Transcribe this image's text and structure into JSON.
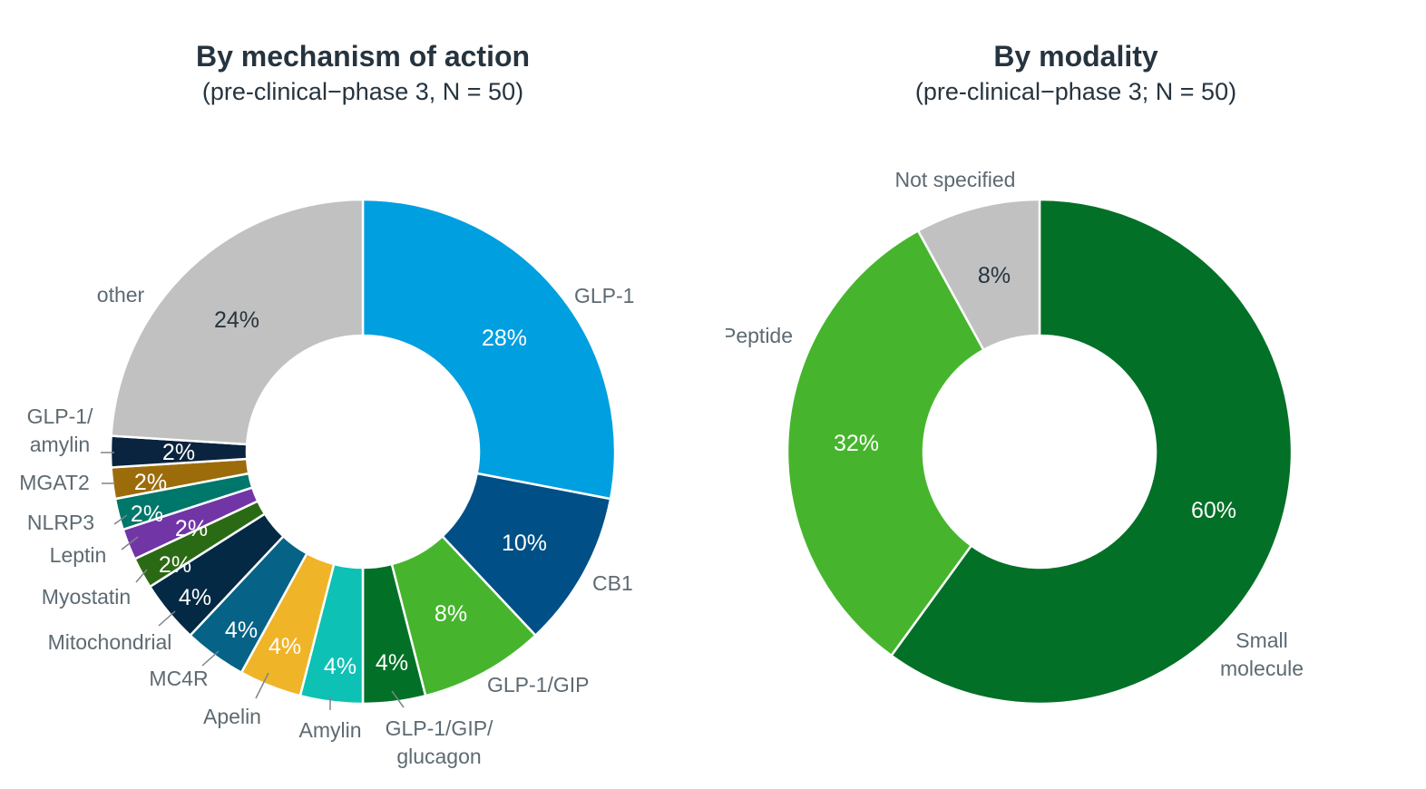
{
  "chart_data": [
    {
      "type": "pie",
      "title": "By mechanism of action",
      "subtitle": "(pre-clinical−phase 3, N = 50)",
      "slices": [
        {
          "name": "GLP-1",
          "value": 28,
          "label": "28%",
          "color": "#009fe0",
          "text_color": "#ffffff"
        },
        {
          "name": "CB1",
          "value": 10,
          "label": "10%",
          "color": "#004f86",
          "text_color": "#ffffff"
        },
        {
          "name": "GLP-1/GIP",
          "value": 8,
          "label": "8%",
          "color": "#46b52d",
          "text_color": "#ffffff"
        },
        {
          "name": "GLP-1/GIP/\nglucagon",
          "value": 4,
          "label": "4%",
          "color": "#037027",
          "text_color": "#ffffff"
        },
        {
          "name": "Amylin",
          "value": 4,
          "label": "4%",
          "color": "#0ec1b5",
          "text_color": "#ffffff"
        },
        {
          "name": "Apelin",
          "value": 4,
          "label": "4%",
          "color": "#f0b428",
          "text_color": "#ffffff"
        },
        {
          "name": "MC4R",
          "value": 4,
          "label": "4%",
          "color": "#066287",
          "text_color": "#ffffff"
        },
        {
          "name": "Mitochondrial",
          "value": 4,
          "label": "4%",
          "color": "#032944",
          "text_color": "#ffffff"
        },
        {
          "name": "Myostatin",
          "value": 2,
          "label": "2%",
          "color": "#2b6a15",
          "text_color": "#ffffff"
        },
        {
          "name": "Leptin",
          "value": 2,
          "label": "2%",
          "color": "#7235a6",
          "text_color": "#ffffff"
        },
        {
          "name": "NLRP3",
          "value": 2,
          "label": "2%",
          "color": "#00776b",
          "text_color": "#ffffff"
        },
        {
          "name": "MGAT2",
          "value": 2,
          "label": "2%",
          "color": "#9c6c0b",
          "text_color": "#ffffff"
        },
        {
          "name": "GLP-1/\namylin",
          "value": 2,
          "label": "2%",
          "color": "#0a233e",
          "text_color": "#ffffff"
        },
        {
          "name": "other",
          "value": 24,
          "label": "24%",
          "color": "#c1c1c1",
          "text_color": "#26343f"
        }
      ]
    },
    {
      "type": "pie",
      "title": "By modality",
      "subtitle": "(pre-clinical−phase 3; N = 50)",
      "slices": [
        {
          "name": "Small\nmolecule",
          "value": 60,
          "label": "60%",
          "color": "#037027",
          "text_color": "#ffffff"
        },
        {
          "name": "Peptide",
          "value": 32,
          "label": "32%",
          "color": "#46b52d",
          "text_color": "#ffffff"
        },
        {
          "name": "Not specified",
          "value": 8,
          "label": "8%",
          "color": "#c1c1c1",
          "text_color": "#26343f"
        }
      ]
    }
  ]
}
